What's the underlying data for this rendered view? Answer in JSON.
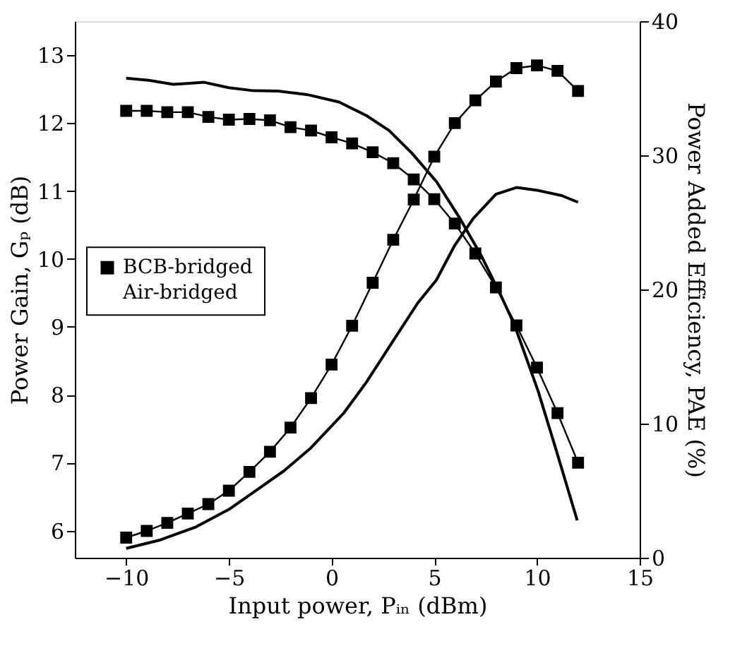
{
  "chart_data": {
    "type": "line",
    "xlabel": "Input power, Pᵢₙ (dBm)",
    "ylabel": "Power Gain, Gₚ (dB)",
    "y2label": "Power Added Efficiency, PAE (%)",
    "xlim": [
      -12.5,
      15
    ],
    "xticks": [
      -10,
      -5,
      0,
      5,
      10,
      15
    ],
    "ylim": [
      5.6,
      13.5
    ],
    "yticks": [
      6,
      7,
      8,
      9,
      10,
      11,
      12,
      13
    ],
    "y2lim": [
      0,
      40
    ],
    "y2ticks": [
      0,
      10,
      20,
      30,
      40
    ],
    "legend": "left",
    "grid": false,
    "line_style": "solid",
    "series": [
      {
        "name": "BCB-bridged",
        "color": "#000000",
        "marker": "square",
        "axis": "y",
        "x": [
          -10,
          -9,
          -8,
          -7,
          -6,
          -5,
          -4,
          -3,
          -2,
          -1,
          0,
          1,
          2,
          3,
          4,
          5,
          6,
          7,
          8,
          9,
          10,
          11,
          12
        ],
        "values": [
          12.18,
          12.18,
          12.16,
          12.16,
          12.09,
          12.05,
          12.06,
          12.04,
          11.94,
          11.89,
          11.79,
          11.7,
          11.57,
          11.41,
          11.17,
          10.88,
          10.52,
          10.08,
          9.58,
          9.02,
          8.4,
          7.73,
          7.0
        ]
      },
      {
        "name": "Air-bridged",
        "color": "#000000",
        "marker": "none",
        "axis": "y",
        "x": [
          -10,
          -8.9,
          -7.7,
          -6.2,
          -5,
          -3.9,
          -2.6,
          -1.2,
          0.36,
          1.7,
          2.8,
          3.9,
          5.1,
          6.2,
          7.3,
          8.2,
          8.9,
          10.05,
          10.9,
          11.96
        ],
        "values": [
          12.66,
          12.63,
          12.57,
          12.6,
          12.52,
          12.48,
          12.47,
          12.42,
          12.31,
          12.11,
          11.89,
          11.56,
          11.14,
          10.62,
          10.04,
          9.49,
          9.03,
          8.06,
          7.22,
          6.15
        ]
      },
      {
        "color": "#000000",
        "marker": "square",
        "axis": "y2",
        "x": [
          -10,
          -9,
          -8,
          -7,
          -6,
          -5,
          -4,
          -3,
          -2,
          -1,
          0,
          1,
          2,
          3,
          4,
          5,
          6,
          7,
          8,
          9,
          10,
          11,
          12
        ],
        "values": [
          1.5,
          2.0,
          2.6,
          3.3,
          4.0,
          5.0,
          6.4,
          7.9,
          9.7,
          11.9,
          14.4,
          17.3,
          20.5,
          23.7,
          26.7,
          29.9,
          32.4,
          34.1,
          35.5,
          36.5,
          36.7,
          36.3,
          34.8
        ]
      },
      {
        "color": "#000000",
        "marker": "none",
        "axis": "y2",
        "x": [
          -10,
          -8.4,
          -6.6,
          -5,
          -3.5,
          -2.3,
          -1.0,
          0.6,
          1.7,
          2.8,
          4.2,
          5.1,
          6.0,
          6.9,
          8.0,
          9.0,
          10.0,
          11.2,
          12.0
        ],
        "values": [
          0.7,
          1.3,
          2.3,
          3.6,
          5.2,
          6.5,
          8.2,
          10.8,
          13.1,
          15.7,
          19.0,
          20.7,
          23.3,
          25.3,
          27.1,
          27.6,
          27.4,
          27.0,
          26.5
        ]
      }
    ]
  }
}
